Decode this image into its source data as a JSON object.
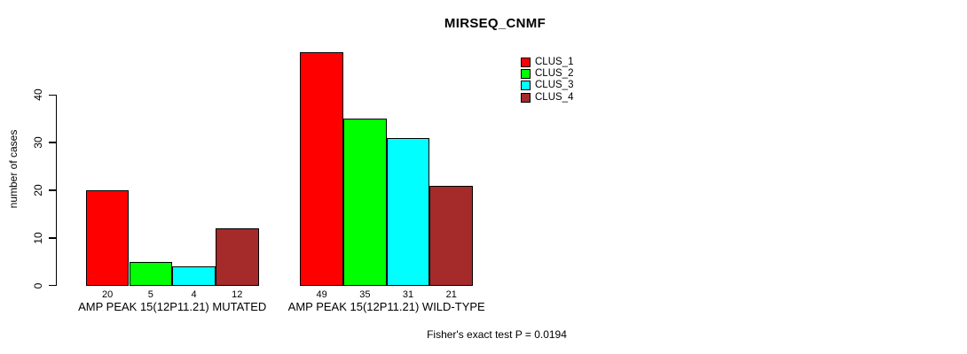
{
  "chart_data": {
    "type": "bar",
    "title": "MIRSEQ_CNMF",
    "ylabel": "number of cases",
    "yticks": [
      0,
      10,
      20,
      30,
      40
    ],
    "ylim": [
      0,
      49
    ],
    "grid": false,
    "legend_position": "top-right",
    "series": [
      {
        "name": "CLUS_1",
        "color": "#FF0000"
      },
      {
        "name": "CLUS_2",
        "color": "#00FF00"
      },
      {
        "name": "CLUS_3",
        "color": "#00FFFF"
      },
      {
        "name": "CLUS_4",
        "color": "#A52A2A"
      }
    ],
    "groups": [
      {
        "label": "AMP PEAK 15(12P11.21) MUTATED",
        "values": [
          20,
          5,
          4,
          12
        ]
      },
      {
        "label": "AMP PEAK 15(12P11.21) WILD-TYPE",
        "values": [
          49,
          35,
          31,
          21
        ]
      }
    ],
    "bar_value_labels": true,
    "annotation": "Fisher's exact test P = 0.0194"
  }
}
